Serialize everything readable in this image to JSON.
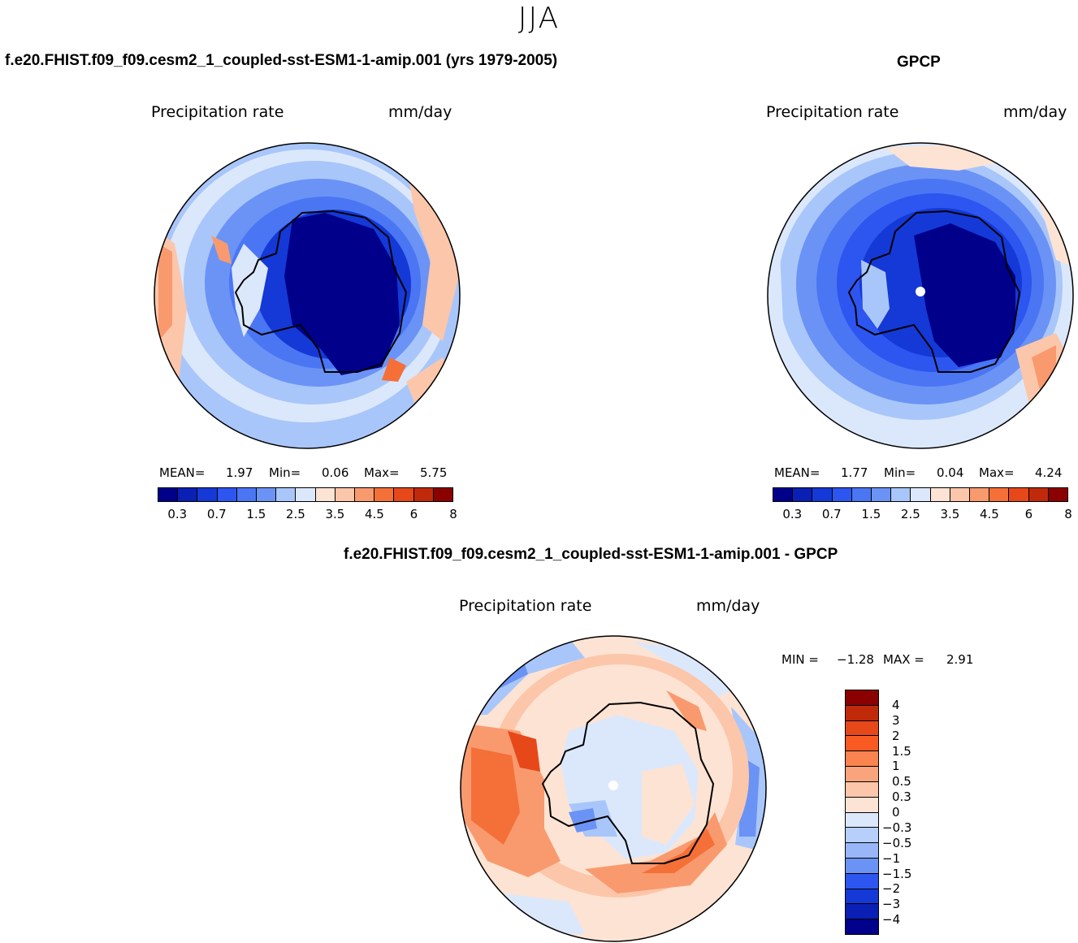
{
  "season": "JJA",
  "panels": {
    "model": {
      "title": "f.e20.FHIST.f09_f09.cesm2_1_coupled-sst-ESM1-1-amip.001 (yrs 1979-2005)",
      "variable": "Precipitation rate",
      "units": "mm/day",
      "stats": {
        "mean_label": "MEAN=",
        "mean": "1.97",
        "min_label": "Min=",
        "min": "0.06",
        "max_label": "Max=",
        "max": "5.75"
      }
    },
    "obs": {
      "title": "GPCP",
      "variable": "Precipitation rate",
      "units": "mm/day",
      "stats": {
        "mean_label": "MEAN=",
        "mean": "1.77",
        "min_label": "Min=",
        "min": "0.04",
        "max_label": "Max=",
        "max": "4.24"
      }
    },
    "diff": {
      "title": "f.e20.FHIST.f09_f09.cesm2_1_coupled-sst-ESM1-1-amip.001 - GPCP",
      "variable": "Precipitation rate",
      "units": "mm/day",
      "stats": {
        "min_label": "MIN =",
        "min": "−1.28",
        "max_label": "MAX =",
        "max": "2.91"
      }
    }
  },
  "colorbars": {
    "abs": {
      "colors": [
        "#00008b",
        "#0a1fb4",
        "#1439d6",
        "#2d55f0",
        "#4a76f4",
        "#6b93f5",
        "#a9c6fa",
        "#dbe8fc",
        "#fde3d3",
        "#fcc6aa",
        "#f99a6e",
        "#f47038",
        "#e6481a",
        "#c02a0a",
        "#8b0000"
      ],
      "labels": [
        "0.3",
        "0.7",
        "1.5",
        "2.5",
        "3.5",
        "4.5",
        "6",
        "8"
      ]
    },
    "diff": {
      "colors_top_to_bottom": [
        "#8b0000",
        "#c02a0a",
        "#e6481a",
        "#f95a22",
        "#f98450",
        "#f9a47c",
        "#fcc6aa",
        "#fde3d3",
        "#dbe8fc",
        "#b7d0fb",
        "#98b6f8",
        "#6b93f5",
        "#2d55f0",
        "#1439d6",
        "#0a1fb4",
        "#00008b"
      ],
      "labels": [
        "4",
        "3",
        "2",
        "1.5",
        "1",
        "0.5",
        "0.3",
        "0",
        "−0.3",
        "−0.5",
        "−1",
        "−1.5",
        "−2",
        "−3",
        "−4"
      ]
    }
  },
  "map_colors": {
    "very_dry": "#00008b",
    "dry": "#1439d6",
    "mid": "#2d55f0",
    "light_blue": "#6b93f5",
    "pale_blue": "#a9c6fa",
    "faint_blue": "#dbe8fc",
    "cream": "#fde3d3",
    "peach": "#fcc6aa",
    "orange": "#f99a6e",
    "red_orange": "#f47038",
    "red": "#e6481a"
  }
}
